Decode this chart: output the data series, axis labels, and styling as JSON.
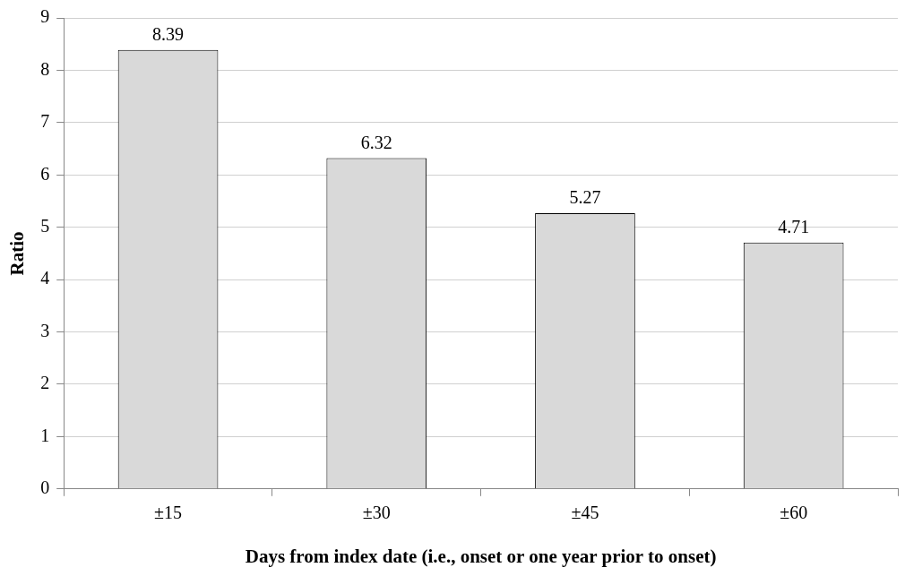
{
  "chart_data": {
    "type": "bar",
    "xlabel": "Days from index date (i.e., onset or one year prior to onset)",
    "ylabel": "Ratio",
    "categories": [
      "±15",
      "±30",
      "±45",
      "±60"
    ],
    "values": [
      8.39,
      6.32,
      5.27,
      4.71
    ],
    "color": "#d9d9d9",
    "ylim": [
      0,
      9
    ],
    "yticks": [
      0,
      1,
      2,
      3,
      4,
      5,
      6,
      7,
      8,
      9
    ],
    "grid": "y",
    "data_labels": true,
    "legend": false
  }
}
